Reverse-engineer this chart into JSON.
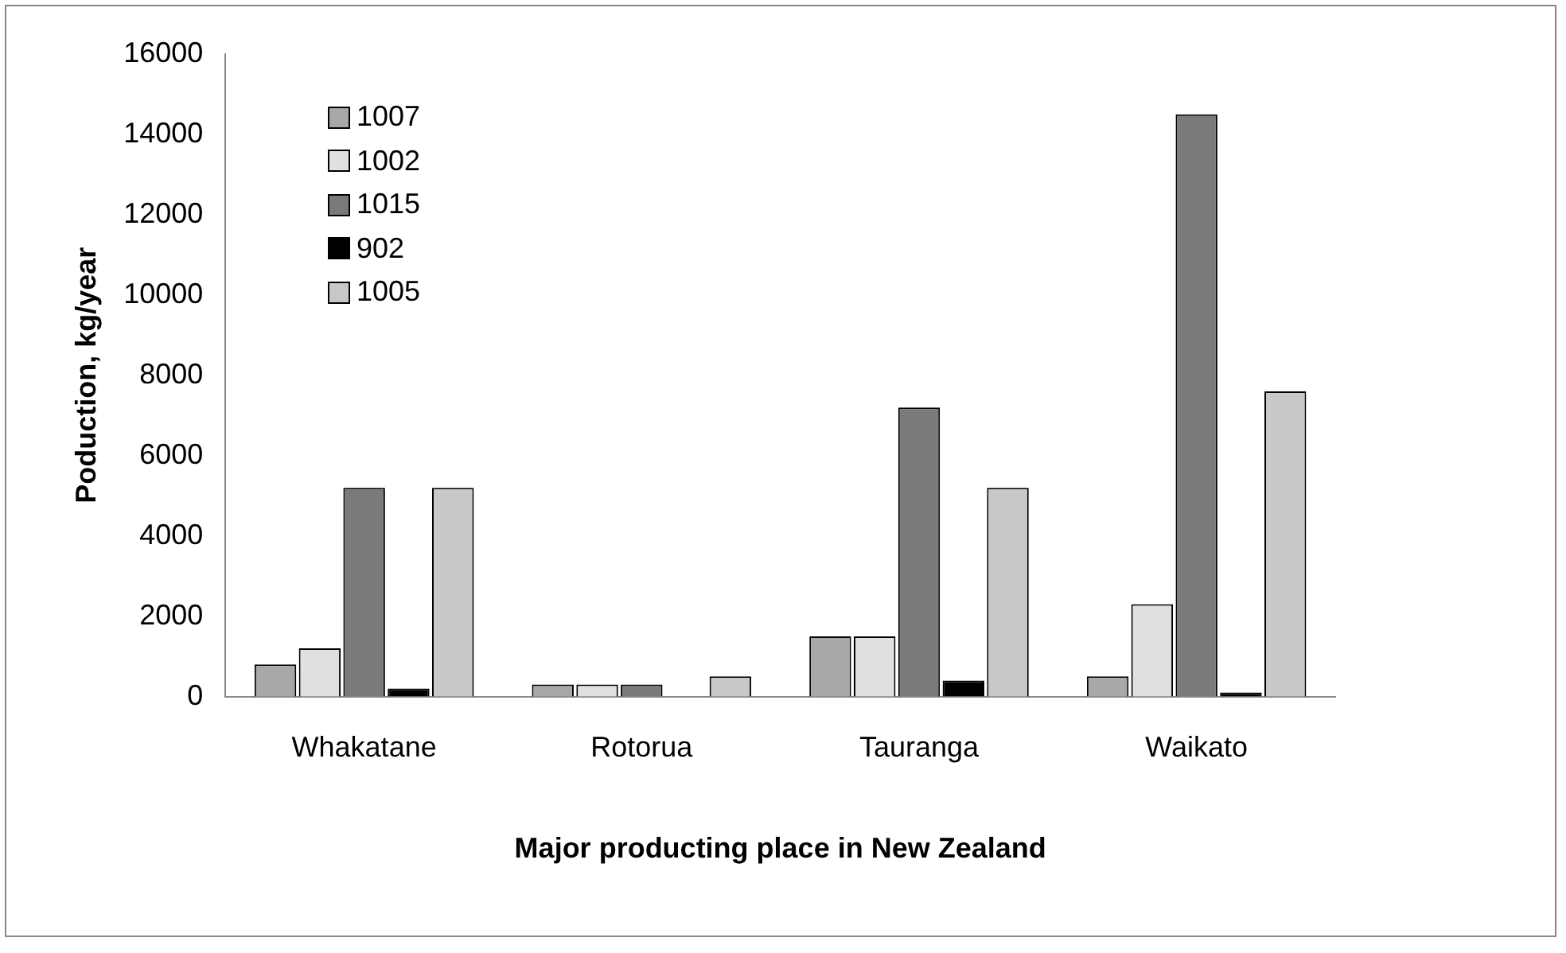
{
  "chart_data": {
    "type": "bar",
    "xlabel": "Major producting place in New Zealand",
    "ylabel": "Poduction, kg/year",
    "categories": [
      "Whakatane",
      "Rotorua",
      "Tauranga",
      "Waikato"
    ],
    "series": [
      {
        "name": "1007",
        "color": "#a8a8a8",
        "values": [
          800,
          300,
          1500,
          500
        ]
      },
      {
        "name": "1002",
        "color": "#e0e0e0",
        "values": [
          1200,
          300,
          1500,
          2300
        ]
      },
      {
        "name": "1015",
        "color": "#7a7a7a",
        "values": [
          5200,
          300,
          7200,
          14500
        ]
      },
      {
        "name": "902",
        "color": "#000000",
        "values": [
          200,
          0,
          400,
          100
        ]
      },
      {
        "name": "1005",
        "color": "#c8c8c8",
        "values": [
          5200,
          500,
          5200,
          7600
        ]
      }
    ],
    "ylim": [
      0,
      16000
    ],
    "yticks": [
      0,
      2000,
      4000,
      6000,
      8000,
      10000,
      12000,
      14000,
      16000
    ],
    "grid": false,
    "legend": "top left"
  }
}
